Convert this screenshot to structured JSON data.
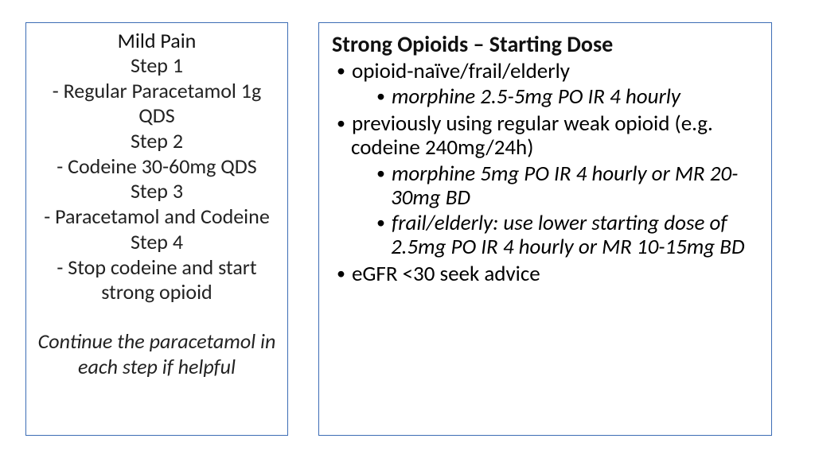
{
  "left": {
    "title": "Mild Pain",
    "lines": [
      "Step 1",
      "- Regular Paracetamol 1g QDS",
      "Step 2",
      "- Codeine 30-60mg QDS",
      "Step 3",
      "- Paracetamol and Codeine",
      "Step 4",
      "- Stop codeine and start strong opioid"
    ],
    "italic": "Continue the paracetamol in each step if helpful"
  },
  "right": {
    "title": "Strong Opioids – Starting Dose",
    "item1": "opioid-naïve/frail/elderly",
    "item1sub1": "morphine 2.5-5mg PO IR 4 hourly",
    "item2": "previously using regular weak opioid (e.g. codeine 240mg/24h)",
    "item2sub1": "morphine 5mg PO IR 4 hourly or MR 20-30mg BD",
    "item2sub2": "frail/elderly: use lower starting dose of 2.5mg PO IR 4 hourly or MR 10-15mg BD",
    "item3": "eGFR <30 seek advice"
  }
}
